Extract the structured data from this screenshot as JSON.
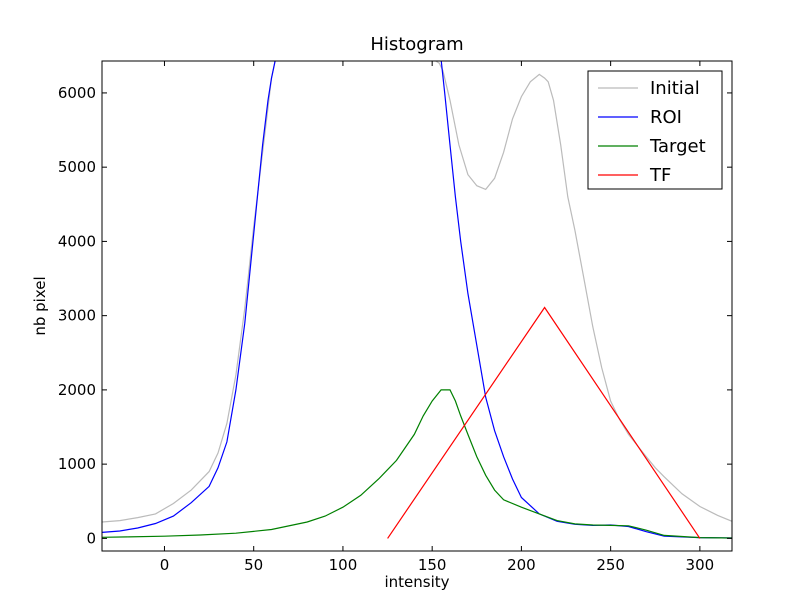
{
  "chart_data": {
    "type": "line",
    "title": "Histogram",
    "xlabel": "intensity",
    "ylabel": "nb pixel",
    "xlim": [
      -35,
      318
    ],
    "ylim": [
      -170,
      6430
    ],
    "xticks": [
      0,
      50,
      100,
      150,
      200,
      250,
      300
    ],
    "yticks": [
      0,
      1000,
      2000,
      3000,
      4000,
      5000,
      6000
    ],
    "grid": false,
    "legend_position": "top-right",
    "series": [
      {
        "name": "Initial",
        "color": "#bbbbbb",
        "x": [
          -35,
          -25,
          -15,
          -5,
          5,
          15,
          25,
          30,
          35,
          40,
          45,
          50,
          55,
          58,
          60,
          62,
          64,
          150,
          152,
          154,
          156,
          160,
          165,
          170,
          175,
          180,
          185,
          190,
          195,
          200,
          205,
          210,
          213,
          215,
          218,
          222,
          226,
          230,
          235,
          240,
          245,
          250,
          255,
          260,
          265,
          270,
          275,
          280,
          290,
          300,
          310,
          318
        ],
        "values": [
          220,
          240,
          280,
          330,
          470,
          650,
          900,
          1150,
          1550,
          2200,
          3100,
          4200,
          5200,
          5800,
          6200,
          6430,
          6450,
          6450,
          6430,
          6400,
          6300,
          5900,
          5300,
          4900,
          4750,
          4700,
          4850,
          5200,
          5650,
          5950,
          6150,
          6250,
          6200,
          6150,
          5900,
          5300,
          4600,
          4150,
          3500,
          2850,
          2300,
          1850,
          1600,
          1400,
          1250,
          1100,
          950,
          830,
          600,
          430,
          310,
          230
        ]
      },
      {
        "name": "ROI",
        "color": "#0000ff",
        "x": [
          -35,
          -25,
          -15,
          -5,
          5,
          15,
          25,
          30,
          35,
          40,
          45,
          50,
          55,
          58,
          60,
          62,
          63,
          155,
          157,
          160,
          163,
          166,
          170,
          175,
          180,
          185,
          190,
          195,
          200,
          210,
          220,
          230,
          240,
          250,
          260,
          270,
          280,
          300,
          318
        ],
        "values": [
          80,
          100,
          140,
          200,
          300,
          480,
          700,
          950,
          1300,
          2000,
          2900,
          4100,
          5300,
          5900,
          6200,
          6430,
          6450,
          6450,
          6000,
          5300,
          4600,
          4000,
          3300,
          2600,
          1900,
          1450,
          1100,
          800,
          550,
          330,
          230,
          190,
          175,
          180,
          160,
          90,
          30,
          10,
          5
        ]
      },
      {
        "name": "Target",
        "color": "#008000",
        "x": [
          -35,
          -20,
          0,
          20,
          40,
          60,
          80,
          90,
          100,
          110,
          120,
          130,
          140,
          145,
          150,
          155,
          160,
          163,
          166,
          170,
          175,
          180,
          185,
          190,
          200,
          210,
          220,
          230,
          240,
          250,
          260,
          270,
          280,
          300,
          318
        ],
        "values": [
          15,
          20,
          30,
          45,
          70,
          120,
          220,
          300,
          420,
          580,
          800,
          1050,
          1400,
          1650,
          1850,
          2000,
          2000,
          1850,
          1650,
          1400,
          1100,
          850,
          650,
          520,
          420,
          330,
          240,
          195,
          180,
          175,
          170,
          110,
          40,
          10,
          5
        ]
      },
      {
        "name": "TF",
        "color": "#ff0000",
        "x": [
          125,
          213,
          300
        ],
        "values": [
          0,
          3110,
          0
        ]
      }
    ]
  }
}
